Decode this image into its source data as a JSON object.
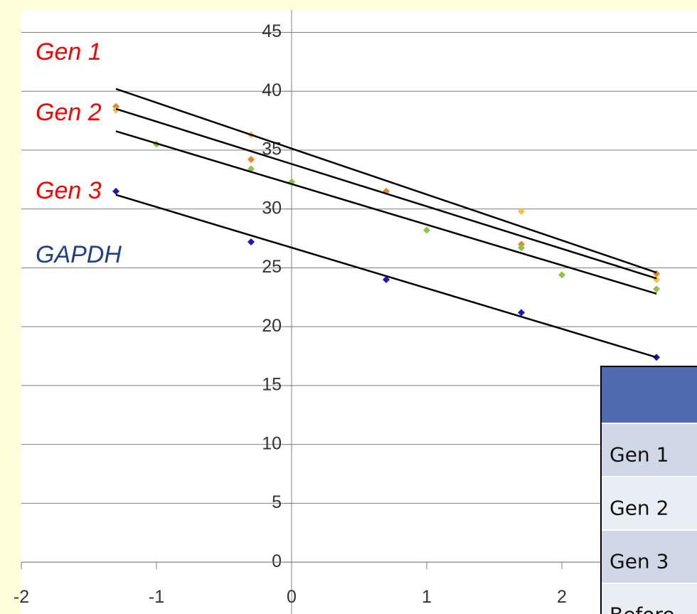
{
  "chart_data": {
    "type": "scatter",
    "xlim": [
      -2,
      3
    ],
    "ylim": [
      -4.4,
      46.9
    ],
    "xticks": [
      -2,
      -1,
      0,
      1,
      2
    ],
    "yticks": [
      0,
      5,
      10,
      15,
      20,
      25,
      30,
      35,
      40,
      45
    ],
    "grid": true,
    "annotations": [
      {
        "text": "Gen 1",
        "color": "#ff0000"
      },
      {
        "text": "Gen 2",
        "color": "#ff0000"
      },
      {
        "text": "Gen 3",
        "color": "#ff0000"
      },
      {
        "text": "GAPDH",
        "color": "#1f3f8f"
      }
    ],
    "series": [
      {
        "color": "#e8852a",
        "x": [
          -1.3,
          -0.3,
          0.7,
          1.7,
          2.7
        ],
        "values": [
          38.7,
          34.2,
          31.5,
          27.0,
          24.5
        ]
      },
      {
        "color": "#f5c242",
        "x": [
          -1.3,
          -0.3,
          1.7,
          2.7
        ],
        "values": [
          38.4,
          36.3,
          29.8,
          24.0
        ]
      },
      {
        "color": "#8cc63f",
        "x": [
          -1.0,
          -0.3,
          0.0,
          1.0,
          1.7,
          2.0,
          2.7
        ],
        "values": [
          35.5,
          33.4,
          32.3,
          28.2,
          26.7,
          24.4,
          23.2
        ]
      },
      {
        "color": "#1a1ab8",
        "x": [
          -1.3,
          -0.3,
          0.7,
          1.7,
          2.7
        ],
        "values": [
          31.5,
          27.2,
          24.0,
          21.2,
          17.4
        ]
      }
    ],
    "trendlines": [
      {
        "x": [
          -1.3,
          2.7
        ],
        "y": [
          40.2,
          24.6
        ]
      },
      {
        "x": [
          -1.3,
          2.7
        ],
        "y": [
          38.5,
          24.1
        ]
      },
      {
        "x": [
          -1.3,
          2.7
        ],
        "y": [
          36.6,
          22.8
        ]
      },
      {
        "x": [
          -1.3,
          2.7
        ],
        "y": [
          31.2,
          17.4
        ]
      }
    ]
  },
  "table": {
    "rows": [
      [
        "Gen 1"
      ],
      [
        "Gen 2"
      ],
      [
        "Gen 3"
      ],
      [
        "Before"
      ]
    ]
  }
}
